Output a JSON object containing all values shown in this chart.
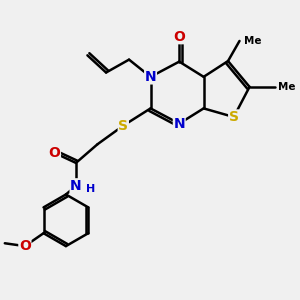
{
  "bg_color": "#f0f0f0",
  "atom_colors": {
    "C": "#000000",
    "N": "#0000cc",
    "O": "#cc0000",
    "S": "#ccaa00",
    "H": "#0000cc"
  },
  "bond_color": "#000000",
  "bond_width": 1.8,
  "figsize": [
    3.0,
    3.0
  ],
  "dpi": 100
}
